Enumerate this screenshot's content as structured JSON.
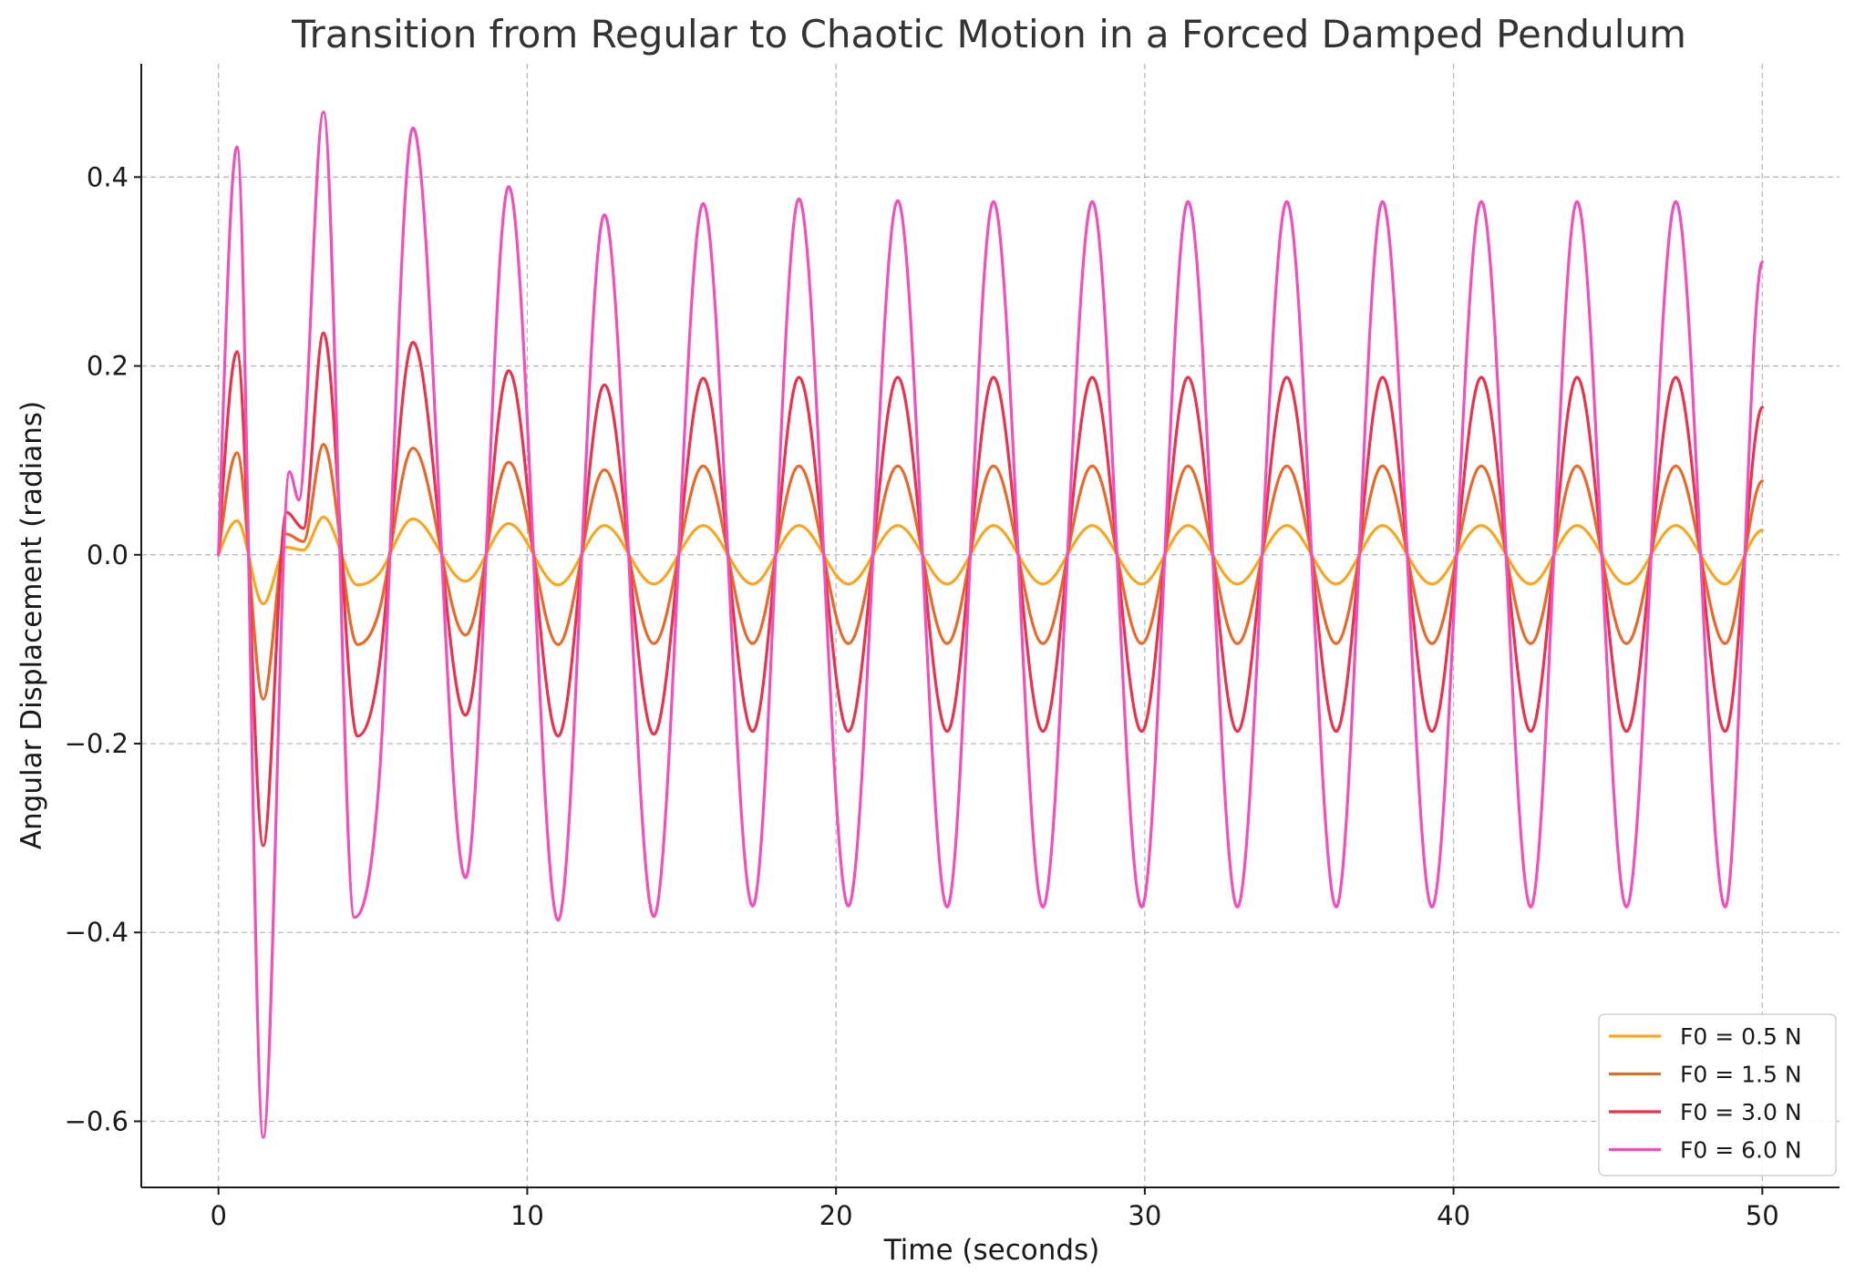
{
  "chart_data": {
    "type": "line",
    "title": "Transition from Regular to Chaotic Motion in a Forced Damped Pendulum",
    "xlabel": "Time (seconds)",
    "ylabel": "Angular Displacement (radians)",
    "xlim": [
      -2.5,
      52.5
    ],
    "ylim": [
      -0.67,
      0.52
    ],
    "xticks": [
      0,
      10,
      20,
      30,
      40,
      50
    ],
    "xtick_labels": [
      "0",
      "10",
      "20",
      "30",
      "40",
      "50"
    ],
    "yticks": [
      -0.6,
      -0.4,
      -0.2,
      0.0,
      0.2,
      0.4
    ],
    "ytick_labels": [
      "−0.6",
      "−0.4",
      "−0.2",
      "0.0",
      "0.2",
      "0.4"
    ],
    "grid": true,
    "legend_position": "lower-right",
    "series": [
      {
        "name": "F0 = 0.5 N",
        "color": "#f5a623",
        "x": [
          0,
          0.6,
          1.45,
          2.2,
          2.75,
          3.4,
          4.5,
          5.2,
          6.3,
          8.0,
          9.4,
          11.0,
          12.5,
          14.1,
          15.7,
          17.3,
          18.8,
          20.4,
          22.0,
          23.6,
          25.1,
          26.7,
          28.3,
          29.9,
          31.4,
          33.0,
          34.6,
          36.2,
          37.7,
          39.3,
          40.9,
          42.5,
          44.0,
          45.6,
          47.2,
          48.8,
          50.0
        ],
        "y": [
          0.0,
          0.036,
          -0.052,
          0.008,
          0.005,
          0.04,
          -0.032,
          -0.02,
          0.038,
          -0.028,
          0.033,
          -0.032,
          0.031,
          -0.031,
          0.031,
          -0.031,
          0.031,
          -0.031,
          0.031,
          -0.031,
          0.031,
          -0.031,
          0.031,
          -0.031,
          0.031,
          -0.031,
          0.031,
          -0.031,
          0.031,
          -0.031,
          0.031,
          -0.031,
          0.031,
          -0.031,
          0.031,
          -0.031,
          0.026
        ]
      },
      {
        "name": "F0 = 1.5 N",
        "color": "#e8682b",
        "x": [
          0,
          0.6,
          1.45,
          2.2,
          2.75,
          3.4,
          4.5,
          5.2,
          6.3,
          8.0,
          9.4,
          11.0,
          12.5,
          14.1,
          15.7,
          17.3,
          18.8,
          20.4,
          22.0,
          23.6,
          25.1,
          26.7,
          28.3,
          29.9,
          31.4,
          33.0,
          34.6,
          36.2,
          37.7,
          39.3,
          40.9,
          42.5,
          44.0,
          45.6,
          47.2,
          48.8,
          50.0
        ],
        "y": [
          0.0,
          0.108,
          -0.153,
          0.022,
          0.014,
          0.117,
          -0.095,
          -0.06,
          0.113,
          -0.085,
          0.098,
          -0.095,
          0.09,
          -0.094,
          0.094,
          -0.094,
          0.094,
          -0.094,
          0.094,
          -0.094,
          0.094,
          -0.094,
          0.094,
          -0.094,
          0.094,
          -0.094,
          0.094,
          -0.094,
          0.094,
          -0.094,
          0.094,
          -0.094,
          0.094,
          -0.094,
          0.094,
          -0.094,
          0.078
        ]
      },
      {
        "name": "F0 = 3.0 N",
        "color": "#e8324e",
        "x": [
          0,
          0.6,
          1.45,
          2.2,
          2.75,
          3.4,
          4.5,
          5.2,
          6.3,
          8.0,
          9.4,
          11.0,
          12.5,
          14.1,
          15.7,
          17.3,
          18.8,
          20.4,
          22.0,
          23.6,
          25.1,
          26.7,
          28.3,
          29.9,
          31.4,
          33.0,
          34.6,
          36.2,
          37.7,
          39.3,
          40.9,
          42.5,
          44.0,
          45.6,
          47.2,
          48.8,
          50.0
        ],
        "y": [
          0.0,
          0.215,
          -0.308,
          0.045,
          0.028,
          0.235,
          -0.192,
          -0.12,
          0.225,
          -0.17,
          0.195,
          -0.192,
          0.18,
          -0.19,
          0.187,
          -0.187,
          0.188,
          -0.187,
          0.188,
          -0.187,
          0.188,
          -0.187,
          0.188,
          -0.187,
          0.188,
          -0.187,
          0.188,
          -0.187,
          0.188,
          -0.187,
          0.188,
          -0.187,
          0.188,
          -0.187,
          0.188,
          -0.187,
          0.156
        ]
      },
      {
        "name": "F0 = 6.0 N",
        "color": "#f050b9",
        "x": [
          0,
          0.6,
          1.45,
          2.3,
          2.6,
          3.4,
          4.4,
          5.2,
          6.3,
          8.0,
          9.4,
          11.0,
          12.5,
          14.1,
          15.7,
          17.3,
          18.8,
          20.4,
          22.0,
          23.6,
          25.1,
          26.7,
          28.3,
          29.9,
          31.4,
          33.0,
          34.6,
          36.2,
          37.7,
          39.3,
          40.9,
          42.5,
          44.0,
          45.6,
          47.2,
          48.8,
          50.0
        ],
        "y": [
          0.0,
          0.432,
          -0.617,
          0.088,
          0.058,
          0.469,
          -0.384,
          -0.24,
          0.452,
          -0.342,
          0.39,
          -0.387,
          0.36,
          -0.383,
          0.372,
          -0.372,
          0.377,
          -0.372,
          0.375,
          -0.373,
          0.374,
          -0.373,
          0.374,
          -0.373,
          0.374,
          -0.373,
          0.374,
          -0.373,
          0.374,
          -0.373,
          0.374,
          -0.373,
          0.374,
          -0.373,
          0.374,
          -0.373,
          0.31
        ]
      }
    ]
  }
}
